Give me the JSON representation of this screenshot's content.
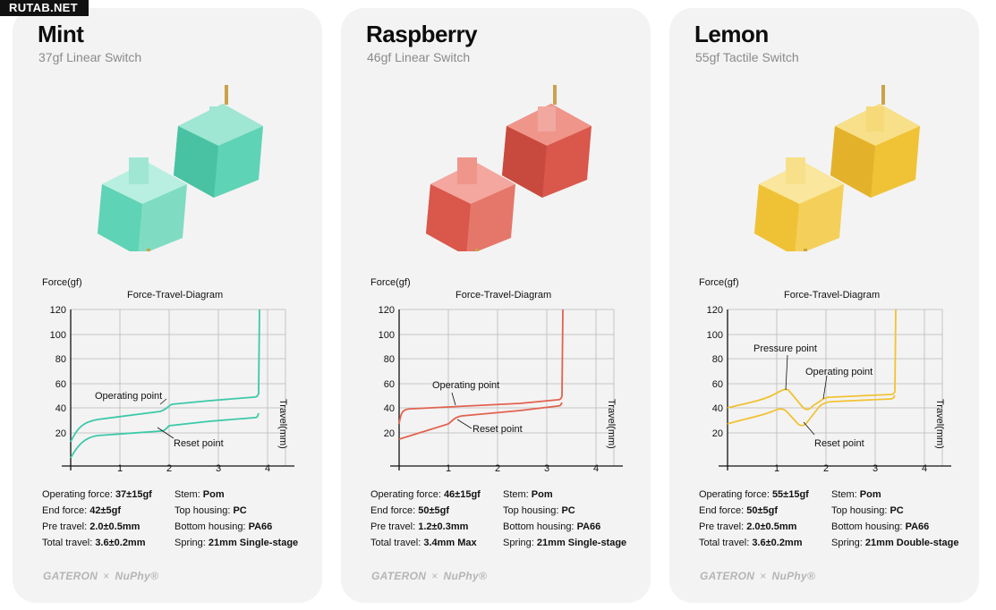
{
  "watermark": "RUTAB.NET",
  "common": {
    "diagram_title": "Force-Travel-Diagram",
    "y_axis_label": "Force(gf)",
    "x_axis_label": "Travel(mm)",
    "y_ticks": [
      "120",
      "100",
      "80",
      "60",
      "40",
      "20"
    ],
    "x_ticks": [
      "1",
      "2",
      "3",
      "4"
    ],
    "brand_a": "GATERON",
    "brand_x": "×",
    "brand_b": "NuPhy®",
    "spec_labels": {
      "operating_force": "Operating force:",
      "end_force": "End force:",
      "pre_travel": "Pre travel:",
      "total_travel": "Total travel:",
      "stem": "Stem:",
      "top_housing": "Top housing:",
      "bottom_housing": "Bottom housing:",
      "spring": "Spring:"
    }
  },
  "cards": [
    {
      "name": "Mint",
      "subtitle": "37gf Linear Switch",
      "accent": "#3cc9a8",
      "switch_light": "#9fe6d3",
      "switch_dark": "#5fd3b5",
      "annotations": [
        "Operating point",
        "Reset point"
      ],
      "specs": {
        "operating_force": "37±15gf",
        "end_force": "42±5gf",
        "pre_travel": "2.0±0.5mm",
        "total_travel": "3.6±0.2mm",
        "stem": "Pom",
        "top_housing": "PC",
        "bottom_housing": "PA66",
        "spring": "21mm Single-stage"
      }
    },
    {
      "name": "Raspberry",
      "subtitle": "46gf Linear Switch",
      "accent": "#e2624f",
      "switch_light": "#f0958a",
      "switch_dark": "#d9574b",
      "annotations": [
        "Operating point",
        "Reset point"
      ],
      "specs": {
        "operating_force": "46±15gf",
        "end_force": "50±5gf",
        "pre_travel": "1.2±0.3mm",
        "total_travel": "3.4mm Max",
        "stem": "Pom",
        "top_housing": "PC",
        "bottom_housing": "PA66",
        "spring": "21mm Single-stage"
      }
    },
    {
      "name": "Lemon",
      "subtitle": "55gf Tactile Switch",
      "accent": "#f2c233",
      "switch_light": "#f8e08a",
      "switch_dark": "#f0c236",
      "annotations": [
        "Pressure point",
        "Operating point",
        "Reset point"
      ],
      "specs": {
        "operating_force": "55±15gf",
        "end_force": "50±5gf",
        "pre_travel": "2.0±0.5mm",
        "total_travel": "3.6±0.2mm",
        "stem": "Pom",
        "top_housing": "PC",
        "bottom_housing": "PA66",
        "spring": "21mm Double-stage"
      }
    }
  ]
}
